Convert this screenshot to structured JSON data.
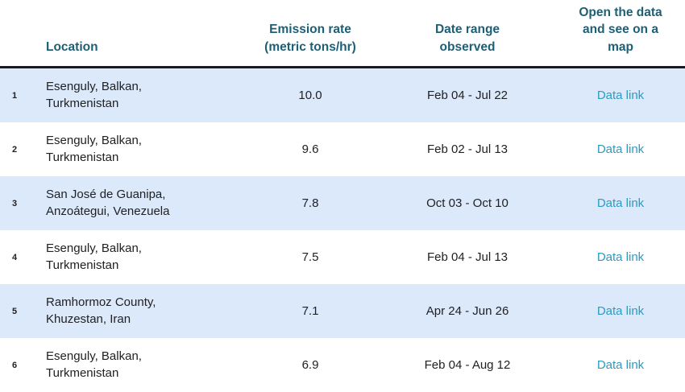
{
  "chart_data": {
    "type": "table",
    "title": "",
    "columns": [
      "",
      "Location",
      "Emission rate (metric tons/hr)",
      "Date range observed",
      "Open the data and see on a map"
    ],
    "rows": [
      [
        "1",
        "Esenguly, Balkan, Turkmenistan",
        10.0,
        "Feb 04 - Jul 22",
        "Data link"
      ],
      [
        "2",
        "Esenguly, Balkan, Turkmenistan",
        9.6,
        "Feb 02 - Jul 13",
        "Data link"
      ],
      [
        "3",
        "San José de Guanipa, Anzoátegui, Venezuela",
        7.8,
        "Oct 03 - Oct 10",
        "Data link"
      ],
      [
        "4",
        "Esenguly, Balkan, Turkmenistan",
        7.5,
        "Feb 04 - Jul 13",
        "Data link"
      ],
      [
        "5",
        "Ramhormoz County, Khuzestan, Iran",
        7.1,
        "Apr 24 - Jun 26",
        "Data link"
      ],
      [
        "6",
        "Esenguly, Balkan, Turkmenistan",
        6.9,
        "Feb 04 - Aug 12",
        "Data link"
      ]
    ]
  },
  "table": {
    "headers": {
      "location": "Location",
      "emission": "Emission rate (metric tons/hr)",
      "date_range": "Date range observed",
      "map_link": "Open the data and see on a map"
    },
    "link_label": "Data link",
    "rows": [
      {
        "rank": "1",
        "location": "Esenguly, Balkan, Turkmenistan",
        "emission": "10.0",
        "date_range": "Feb 04 - Jul 22"
      },
      {
        "rank": "2",
        "location": "Esenguly, Balkan, Turkmenistan",
        "emission": "9.6",
        "date_range": "Feb 02 - Jul 13"
      },
      {
        "rank": "3",
        "location": "San José de Guanipa, Anzoátegui, Venezuela",
        "emission": "7.8",
        "date_range": "Oct 03 - Oct 10"
      },
      {
        "rank": "4",
        "location": "Esenguly, Balkan, Turkmenistan",
        "emission": "7.5",
        "date_range": "Feb 04 - Jul 13"
      },
      {
        "rank": "5",
        "location": "Ramhormoz County, Khuzestan, Iran",
        "emission": "7.1",
        "date_range": "Apr 24 - Jun 26"
      },
      {
        "rank": "6",
        "location": "Esenguly, Balkan, Turkmenistan",
        "emission": "6.9",
        "date_range": "Feb 04 - Aug 12"
      }
    ],
    "colors": {
      "header_text": "#1d5f75",
      "link": "#2b9bc4",
      "row_highlight": "#dbe9fb",
      "header_rule": "#191923"
    }
  }
}
